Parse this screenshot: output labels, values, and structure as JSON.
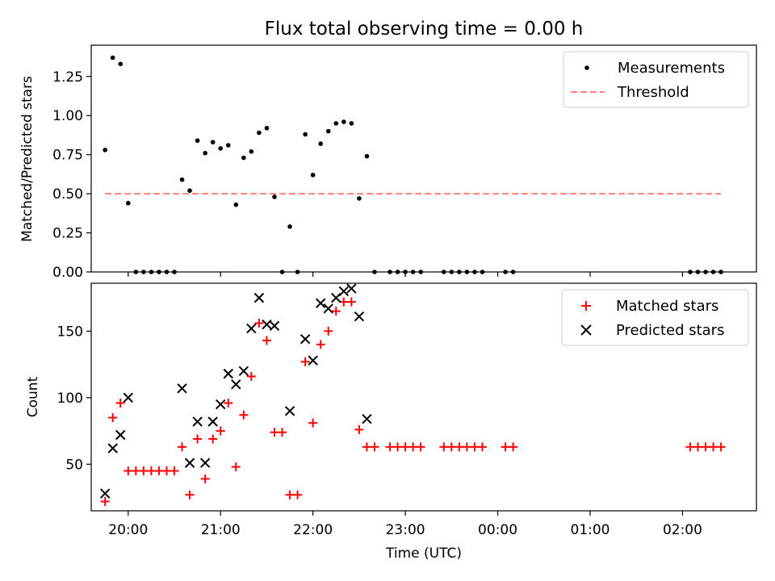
{
  "chart_data": [
    {
      "type": "scatter",
      "title": "Flux total observing time = 0.00 h",
      "ylabel": "Matched/Predicted stars",
      "xlabel": "",
      "x_axis": "time",
      "xlim": [
        "19:36",
        "02:48"
      ],
      "ylim": [
        0,
        1.45
      ],
      "yticks": [
        0.0,
        0.25,
        0.5,
        0.75,
        1.0,
        1.25
      ],
      "ytick_labels": [
        "0.00",
        "0.25",
        "0.50",
        "0.75",
        "1.00",
        "1.25"
      ],
      "grid": false,
      "legend": {
        "position": "top-right",
        "entries": [
          "Measurements",
          "Threshold"
        ]
      },
      "series": [
        {
          "name": "Measurements",
          "marker": "dot",
          "color": "#000000",
          "points": [
            [
              "19:45",
              0.78
            ],
            [
              "19:50",
              1.37
            ],
            [
              "19:55",
              1.33
            ],
            [
              "20:00",
              0.44
            ],
            [
              "20:05",
              0.0
            ],
            [
              "20:10",
              0.0
            ],
            [
              "20:15",
              0.0
            ],
            [
              "20:20",
              0.0
            ],
            [
              "20:25",
              0.0
            ],
            [
              "20:30",
              0.0
            ],
            [
              "20:35",
              0.59
            ],
            [
              "20:40",
              0.52
            ],
            [
              "20:45",
              0.84
            ],
            [
              "20:50",
              0.76
            ],
            [
              "20:55",
              0.83
            ],
            [
              "21:00",
              0.79
            ],
            [
              "21:05",
              0.81
            ],
            [
              "21:10",
              0.43
            ],
            [
              "21:15",
              0.73
            ],
            [
              "21:20",
              0.77
            ],
            [
              "21:25",
              0.89
            ],
            [
              "21:30",
              0.92
            ],
            [
              "21:35",
              0.48
            ],
            [
              "21:40",
              0.0
            ],
            [
              "21:45",
              0.29
            ],
            [
              "21:50",
              0.0
            ],
            [
              "21:55",
              0.88
            ],
            [
              "22:00",
              0.62
            ],
            [
              "22:05",
              0.82
            ],
            [
              "22:10",
              0.9
            ],
            [
              "22:15",
              0.95
            ],
            [
              "22:20",
              0.96
            ],
            [
              "22:25",
              0.95
            ],
            [
              "22:30",
              0.47
            ],
            [
              "22:35",
              0.74
            ],
            [
              "22:40",
              0.0
            ],
            [
              "22:50",
              0.0
            ],
            [
              "22:55",
              0.0
            ],
            [
              "23:00",
              0.0
            ],
            [
              "23:05",
              0.0
            ],
            [
              "23:10",
              0.0
            ],
            [
              "23:25",
              0.0
            ],
            [
              "23:30",
              0.0
            ],
            [
              "23:35",
              0.0
            ],
            [
              "23:40",
              0.0
            ],
            [
              "23:45",
              0.0
            ],
            [
              "23:50",
              0.0
            ],
            [
              "00:05",
              0.0
            ],
            [
              "00:10",
              0.0
            ],
            [
              "02:05",
              0.0
            ],
            [
              "02:10",
              0.0
            ],
            [
              "02:15",
              0.0
            ],
            [
              "02:20",
              0.0
            ],
            [
              "02:25",
              0.0
            ]
          ]
        },
        {
          "name": "Threshold",
          "style": "dashed-line",
          "color": "#ff8080",
          "points": [
            [
              "19:45",
              0.5
            ],
            [
              "02:25",
              0.5
            ]
          ]
        }
      ]
    },
    {
      "type": "scatter",
      "title": "",
      "ylabel": "Count",
      "xlabel": "Time (UTC)",
      "x_axis": "time",
      "xlim": [
        "19:36",
        "02:48"
      ],
      "ylim": [
        15,
        186
      ],
      "yticks": [
        50,
        100,
        150
      ],
      "ytick_labels": [
        "50",
        "100",
        "150"
      ],
      "xticks": [
        "20:00",
        "21:00",
        "22:00",
        "23:00",
        "00:00",
        "01:00",
        "02:00"
      ],
      "xtick_labels": [
        "20:00",
        "21:00",
        "22:00",
        "23:00",
        "00:00",
        "01:00",
        "02:00"
      ],
      "grid": false,
      "legend": {
        "position": "top-right",
        "entries": [
          "Matched stars",
          "Predicted stars"
        ]
      },
      "series": [
        {
          "name": "Matched stars",
          "marker": "plus",
          "color": "#ff0000",
          "points": [
            [
              "19:45",
              22
            ],
            [
              "19:50",
              85
            ],
            [
              "19:55",
              96
            ],
            [
              "20:00",
              45
            ],
            [
              "20:05",
              45
            ],
            [
              "20:10",
              45
            ],
            [
              "20:15",
              45
            ],
            [
              "20:20",
              45
            ],
            [
              "20:25",
              45
            ],
            [
              "20:30",
              45
            ],
            [
              "20:35",
              63
            ],
            [
              "20:40",
              27
            ],
            [
              "20:45",
              69
            ],
            [
              "20:50",
              39
            ],
            [
              "20:55",
              69
            ],
            [
              "21:00",
              75
            ],
            [
              "21:05",
              96
            ],
            [
              "21:10",
              48
            ],
            [
              "21:15",
              87
            ],
            [
              "21:20",
              116
            ],
            [
              "21:25",
              156
            ],
            [
              "21:30",
              143
            ],
            [
              "21:35",
              74
            ],
            [
              "21:40",
              74
            ],
            [
              "21:45",
              27
            ],
            [
              "21:50",
              27
            ],
            [
              "21:55",
              127
            ],
            [
              "22:00",
              81
            ],
            [
              "22:05",
              140
            ],
            [
              "22:10",
              150
            ],
            [
              "22:15",
              165
            ],
            [
              "22:20",
              172
            ],
            [
              "22:25",
              172
            ],
            [
              "22:30",
              76
            ],
            [
              "22:35",
              63
            ],
            [
              "22:40",
              63
            ],
            [
              "22:50",
              63
            ],
            [
              "22:55",
              63
            ],
            [
              "23:00",
              63
            ],
            [
              "23:05",
              63
            ],
            [
              "23:10",
              63
            ],
            [
              "23:25",
              63
            ],
            [
              "23:30",
              63
            ],
            [
              "23:35",
              63
            ],
            [
              "23:40",
              63
            ],
            [
              "23:45",
              63
            ],
            [
              "23:50",
              63
            ],
            [
              "00:05",
              63
            ],
            [
              "00:10",
              63
            ],
            [
              "02:05",
              63
            ],
            [
              "02:10",
              63
            ],
            [
              "02:15",
              63
            ],
            [
              "02:20",
              63
            ],
            [
              "02:25",
              63
            ]
          ]
        },
        {
          "name": "Predicted stars",
          "marker": "x",
          "color": "#000000",
          "points": [
            [
              "19:45",
              28
            ],
            [
              "19:50",
              62
            ],
            [
              "19:55",
              72
            ],
            [
              "20:00",
              100
            ],
            [
              "20:35",
              107
            ],
            [
              "20:40",
              51
            ],
            [
              "20:45",
              82
            ],
            [
              "20:50",
              51
            ],
            [
              "20:55",
              82
            ],
            [
              "21:00",
              95
            ],
            [
              "21:05",
              118
            ],
            [
              "21:10",
              110
            ],
            [
              "21:15",
              120
            ],
            [
              "21:20",
              152
            ],
            [
              "21:25",
              175
            ],
            [
              "21:30",
              155
            ],
            [
              "21:35",
              154
            ],
            [
              "21:45",
              90
            ],
            [
              "21:55",
              144
            ],
            [
              "22:00",
              128
            ],
            [
              "22:05",
              171
            ],
            [
              "22:10",
              167
            ],
            [
              "22:15",
              175
            ],
            [
              "22:20",
              180
            ],
            [
              "22:25",
              182
            ],
            [
              "22:30",
              161
            ],
            [
              "22:35",
              84
            ]
          ]
        }
      ]
    }
  ]
}
